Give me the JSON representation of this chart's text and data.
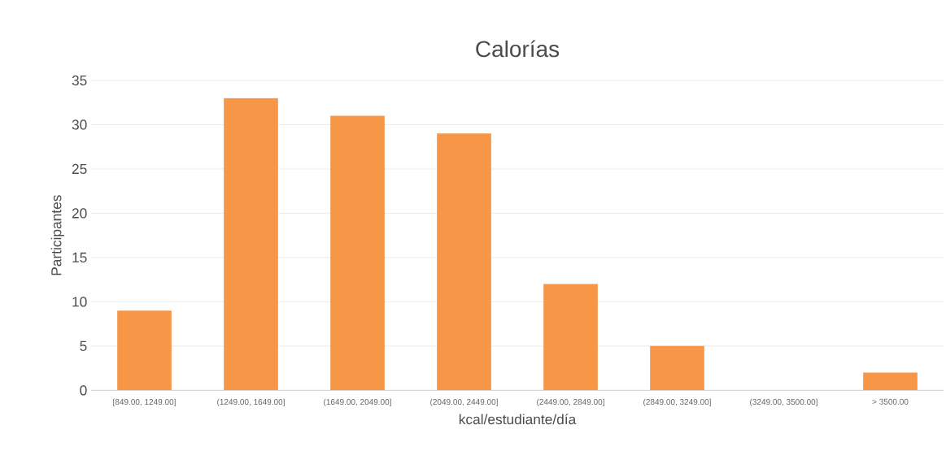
{
  "chart_data": {
    "type": "bar",
    "title": "Calorías",
    "xlabel": "kcal/estudiante/día",
    "ylabel": "Participantes",
    "categories": [
      "[849.00, 1249.00]",
      "(1249.00, 1649.00]",
      "(1649.00, 2049.00]",
      "(2049.00, 2449.00]",
      "(2449.00, 2849.00]",
      "(2849.00, 3249.00]",
      "(3249.00, 3500.00]",
      "> 3500.00"
    ],
    "values": [
      9,
      33,
      31,
      29,
      12,
      5,
      0,
      2
    ],
    "color": "#f79646",
    "ylim": [
      0,
      35
    ],
    "yticks": [
      0,
      5,
      10,
      15,
      20,
      25,
      30,
      35
    ],
    "grid": "y"
  }
}
